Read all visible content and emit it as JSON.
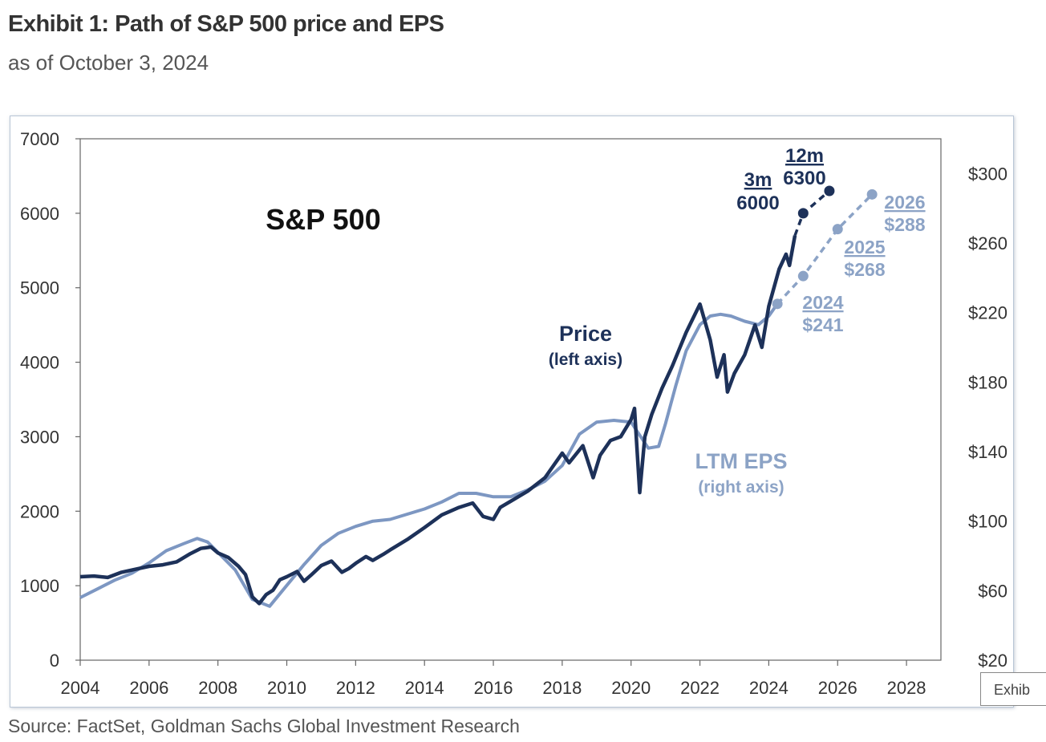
{
  "header": {
    "title": "Exhibit 1: Path of S&P 500 price and EPS",
    "subtitle": "as of October 3, 2024"
  },
  "footer": {
    "source": "Source: FactSet, Goldman Sachs Global Investment Research",
    "tag": "Exhib"
  },
  "colors": {
    "price": "#1d3159",
    "eps": "#7d97c2",
    "eps_label": "#8ca3c6",
    "axis": "#333333"
  },
  "chart_data": {
    "type": "line",
    "title": "S&P 500",
    "x_ticks": [
      "2004",
      "2006",
      "2008",
      "2010",
      "2012",
      "2014",
      "2016",
      "2018",
      "2020",
      "2022",
      "2024",
      "2026",
      "2028"
    ],
    "xlim": [
      2004,
      2029
    ],
    "left_axis": {
      "ticks": [
        "0",
        "1000",
        "2000",
        "3000",
        "4000",
        "5000",
        "6000",
        "7000"
      ],
      "ylim": [
        0,
        7000
      ]
    },
    "right_axis": {
      "ticks": [
        "$20",
        "$60",
        "$100",
        "$140",
        "$180",
        "$220",
        "$260",
        "$300"
      ],
      "ylim": [
        20,
        320
      ]
    },
    "grid": false,
    "series": [
      {
        "name": "Price",
        "sublabel": "(left axis)",
        "axis": "left",
        "points": [
          [
            2004.0,
            1120
          ],
          [
            2004.4,
            1130
          ],
          [
            2004.8,
            1110
          ],
          [
            2005.2,
            1180
          ],
          [
            2005.6,
            1220
          ],
          [
            2006.0,
            1260
          ],
          [
            2006.4,
            1280
          ],
          [
            2006.8,
            1320
          ],
          [
            2007.2,
            1430
          ],
          [
            2007.5,
            1500
          ],
          [
            2007.8,
            1520
          ],
          [
            2008.0,
            1440
          ],
          [
            2008.3,
            1380
          ],
          [
            2008.6,
            1260
          ],
          [
            2008.8,
            1150
          ],
          [
            2009.0,
            850
          ],
          [
            2009.2,
            760
          ],
          [
            2009.4,
            880
          ],
          [
            2009.6,
            940
          ],
          [
            2009.8,
            1080
          ],
          [
            2010.0,
            1120
          ],
          [
            2010.3,
            1190
          ],
          [
            2010.5,
            1060
          ],
          [
            2010.7,
            1140
          ],
          [
            2011.0,
            1270
          ],
          [
            2011.3,
            1330
          ],
          [
            2011.6,
            1180
          ],
          [
            2011.8,
            1230
          ],
          [
            2012.0,
            1300
          ],
          [
            2012.3,
            1390
          ],
          [
            2012.5,
            1340
          ],
          [
            2012.8,
            1420
          ],
          [
            2013.0,
            1480
          ],
          [
            2013.5,
            1620
          ],
          [
            2014.0,
            1780
          ],
          [
            2014.5,
            1950
          ],
          [
            2015.0,
            2050
          ],
          [
            2015.4,
            2110
          ],
          [
            2015.7,
            1930
          ],
          [
            2016.0,
            1890
          ],
          [
            2016.2,
            2050
          ],
          [
            2016.6,
            2160
          ],
          [
            2017.0,
            2270
          ],
          [
            2017.5,
            2450
          ],
          [
            2018.0,
            2780
          ],
          [
            2018.2,
            2650
          ],
          [
            2018.6,
            2880
          ],
          [
            2018.9,
            2450
          ],
          [
            2019.1,
            2750
          ],
          [
            2019.4,
            2950
          ],
          [
            2019.7,
            3000
          ],
          [
            2020.0,
            3230
          ],
          [
            2020.1,
            3380
          ],
          [
            2020.25,
            2250
          ],
          [
            2020.4,
            3000
          ],
          [
            2020.6,
            3300
          ],
          [
            2020.9,
            3650
          ],
          [
            2021.2,
            3950
          ],
          [
            2021.6,
            4400
          ],
          [
            2022.0,
            4780
          ],
          [
            2022.3,
            4300
          ],
          [
            2022.5,
            3800
          ],
          [
            2022.7,
            4100
          ],
          [
            2022.8,
            3600
          ],
          [
            2023.0,
            3850
          ],
          [
            2023.3,
            4100
          ],
          [
            2023.6,
            4500
          ],
          [
            2023.8,
            4200
          ],
          [
            2024.0,
            4750
          ],
          [
            2024.3,
            5250
          ],
          [
            2024.5,
            5450
          ],
          [
            2024.6,
            5300
          ],
          [
            2024.76,
            5700
          ]
        ]
      },
      {
        "name": "LTM EPS",
        "sublabel": "(right axis)",
        "axis": "right",
        "points": [
          [
            2004.0,
            56
          ],
          [
            2004.5,
            61
          ],
          [
            2005.0,
            66
          ],
          [
            2005.5,
            70
          ],
          [
            2006.0,
            76
          ],
          [
            2006.5,
            83
          ],
          [
            2007.0,
            87
          ],
          [
            2007.4,
            90
          ],
          [
            2007.7,
            88
          ],
          [
            2008.0,
            82
          ],
          [
            2008.5,
            72
          ],
          [
            2009.0,
            55
          ],
          [
            2009.5,
            51
          ],
          [
            2010.0,
            63
          ],
          [
            2010.5,
            75
          ],
          [
            2011.0,
            86
          ],
          [
            2011.5,
            93
          ],
          [
            2012.0,
            97
          ],
          [
            2012.5,
            100
          ],
          [
            2013.0,
            101
          ],
          [
            2013.5,
            104
          ],
          [
            2014.0,
            107
          ],
          [
            2014.5,
            111
          ],
          [
            2015.0,
            116
          ],
          [
            2015.5,
            116
          ],
          [
            2016.0,
            114
          ],
          [
            2016.5,
            114
          ],
          [
            2017.0,
            118
          ],
          [
            2017.5,
            123
          ],
          [
            2018.0,
            132
          ],
          [
            2018.5,
            150
          ],
          [
            2019.0,
            157
          ],
          [
            2019.5,
            158
          ],
          [
            2020.0,
            157
          ],
          [
            2020.3,
            148
          ],
          [
            2020.5,
            142
          ],
          [
            2020.8,
            143
          ],
          [
            2021.0,
            156
          ],
          [
            2021.3,
            178
          ],
          [
            2021.6,
            198
          ],
          [
            2022.0,
            213
          ],
          [
            2022.3,
            218
          ],
          [
            2022.6,
            219
          ],
          [
            2022.9,
            218
          ],
          [
            2023.3,
            215
          ],
          [
            2023.7,
            213
          ],
          [
            2024.0,
            218
          ],
          [
            2024.25,
            225
          ]
        ]
      },
      {
        "name": "Price target",
        "axis": "left",
        "style": "dashed",
        "points": [
          [
            2024.76,
            5700
          ],
          [
            2025.0,
            6000
          ],
          [
            2025.76,
            6300
          ]
        ]
      },
      {
        "name": "EPS forecast",
        "axis": "right",
        "style": "dashed",
        "points": [
          [
            2024.25,
            225
          ],
          [
            2025.0,
            241
          ],
          [
            2026.0,
            268
          ],
          [
            2027.0,
            288
          ]
        ]
      }
    ],
    "annotations": {
      "target_3m": {
        "label": "3m",
        "value": "6000"
      },
      "target_12m": {
        "label": "12m",
        "value": "6300"
      },
      "eps_2024": {
        "year": "2024",
        "value": "$241"
      },
      "eps_2025": {
        "year": "2025",
        "value": "$268"
      },
      "eps_2026": {
        "year": "2026",
        "value": "$288"
      }
    }
  }
}
